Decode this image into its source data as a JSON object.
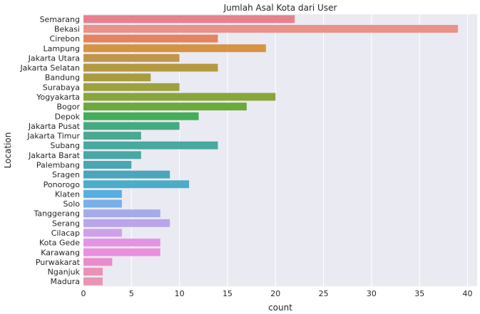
{
  "chart_data": {
    "type": "bar",
    "orientation": "horizontal",
    "title": "Jumlah Asal Kota dari User",
    "xlabel": "count",
    "ylabel": "Location",
    "xlim": [
      0,
      41
    ],
    "xticks": [
      0,
      5,
      10,
      15,
      20,
      25,
      30,
      35,
      40
    ],
    "grid": true,
    "categories": [
      "Semarang",
      "Bekasi",
      "Cirebon",
      "Lampung",
      "Jakarta Utara",
      "Jakarta Selatan",
      "Bandung",
      "Surabaya",
      "Yogyakarta",
      "Bogor",
      "Depok",
      "Jakarta Pusat",
      "Jakarta Timur",
      "Subang",
      "Jakarta Barat",
      "Palembang",
      "Sragen",
      "Ponorogo",
      "Klaten",
      "Solo",
      "Tanggerang",
      "Serang",
      "Cilacap",
      "Kota Gede",
      "Karawang",
      "Purwakarat",
      "Nganjuk",
      "Madura"
    ],
    "values": [
      22,
      39,
      14,
      19,
      10,
      14,
      7,
      10,
      20,
      17,
      12,
      10,
      6,
      14,
      6,
      5,
      9,
      11,
      4,
      4,
      8,
      9,
      4,
      8,
      8,
      3,
      2,
      2
    ],
    "colors": [
      "#e8808e",
      "#ea9288",
      "#e5835e",
      "#d69342",
      "#c0974a",
      "#b49a3f",
      "#a89c3e",
      "#9da23f",
      "#88a63b",
      "#6ca93e",
      "#44ad59",
      "#45aa80",
      "#47aa91",
      "#48a99e",
      "#49a7a6",
      "#4aa6b0",
      "#4ba6bc",
      "#4cacc9",
      "#57afe0",
      "#78afe7",
      "#a4abe8",
      "#baa5e9",
      "#cfa0e9",
      "#e493e5",
      "#ea8fdf",
      "#eb8bc9",
      "#ea91b7",
      "#e896b4"
    ],
    "background": "#eaeaf2"
  }
}
